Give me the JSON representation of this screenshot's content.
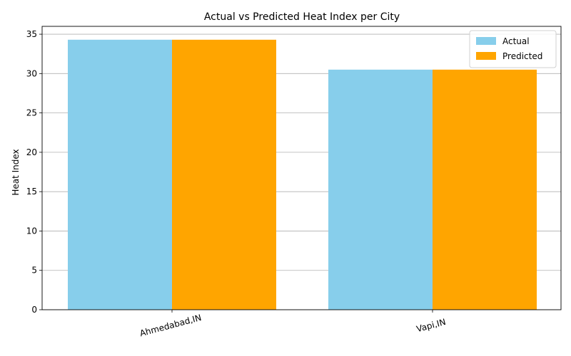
{
  "chart_data": {
    "type": "bar",
    "title": "Actual vs Predicted Heat Index per City",
    "xlabel": "",
    "ylabel": "Heat Index",
    "categories": [
      "Ahmedabad,IN",
      "Vapi,IN"
    ],
    "series": [
      {
        "name": "Actual",
        "values": [
          34.3,
          30.5
        ],
        "color": "#87ceeb"
      },
      {
        "name": "Predicted",
        "values": [
          34.3,
          30.5
        ],
        "color": "#ffa500"
      }
    ],
    "ylim": [
      0,
      36
    ],
    "yticks": [
      0,
      5,
      10,
      15,
      20,
      25,
      30,
      35
    ],
    "grid": "horizontal",
    "legend_position": "top-right",
    "xtick_rotation_deg": 15
  }
}
